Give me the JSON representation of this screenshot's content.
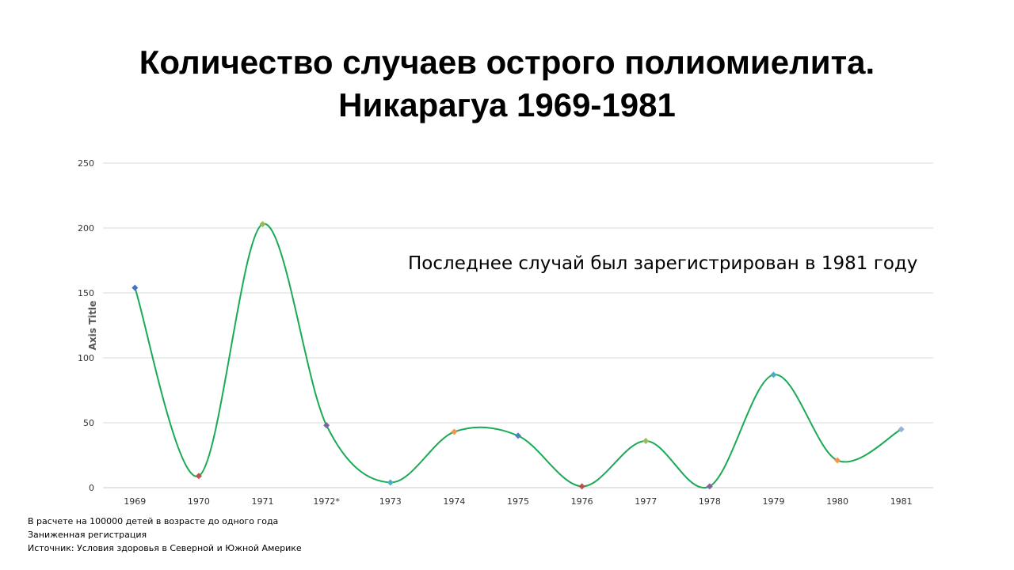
{
  "title_line1": "Количество случаев острого полиомиелита.",
  "title_line2": "Никарагуа 1969-1981",
  "annotation": "Последнее случай был зарегистрирован в 1981 году",
  "footnotes": [
    "В расчете на 100000  детей в возрасте до одного года",
    "Заниженная регистрация",
    "Источник:  Условия  здоровья в Северной и Южной Америке"
  ],
  "chart_data": {
    "type": "line",
    "smooth": true,
    "ylabel": "Axis Title",
    "ylim": [
      0,
      250
    ],
    "yticks": [
      0,
      50,
      100,
      150,
      200,
      250
    ],
    "grid": true,
    "line_color": "#1AAA55",
    "categories": [
      "1969",
      "1970",
      "1971",
      "1972*",
      "1973",
      "1974",
      "1975",
      "1976",
      "1977",
      "1978",
      "1979",
      "1980",
      "1981"
    ],
    "values": [
      154,
      9,
      203,
      48,
      4,
      43,
      40,
      1,
      36,
      1,
      87,
      21,
      45
    ],
    "marker_colors": [
      "#4472C4",
      "#C0504D",
      "#9BBB59",
      "#8064A2",
      "#4BACC6",
      "#F79646",
      "#4F81BD",
      "#C0504D",
      "#9BBB59",
      "#8064A2",
      "#4BACC6",
      "#F79646",
      "#95B3D7"
    ]
  }
}
